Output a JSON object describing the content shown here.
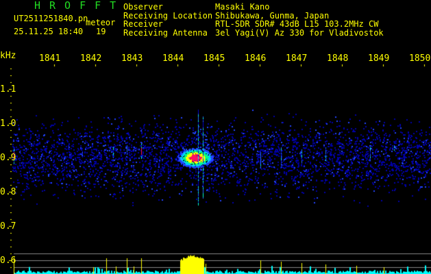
{
  "header": {
    "app_title": "HROFFT",
    "filename": "UT2511251840.pn",
    "mode": "meteor",
    "datetime": "25.11.25 18:40",
    "count": "19",
    "fields": [
      {
        "label": "Observer",
        "value": "Masaki Kano"
      },
      {
        "label": "Receiving Location",
        "value": "Shibukawa, Gunma, Japan"
      },
      {
        "label": "Receiver",
        "value": "RTL-SDR SDR# 43dB L15 103.2MHz CW"
      },
      {
        "label": "Receiving Antenna",
        "value": "3el Yagi(V) Az 330 for Vladivostok"
      }
    ]
  },
  "axis": {
    "unit": "kHz",
    "x_ticks": [
      "1841",
      "1842",
      "1843",
      "1844",
      "1845",
      "1846",
      "1847",
      "1848",
      "1849",
      "1850"
    ],
    "y_ticks": [
      "1.1",
      "1.0",
      "0.9",
      "0.8",
      "0.7",
      "0.6"
    ]
  },
  "colors": {
    "text": "#ffff00",
    "title": "#22dd22",
    "spectrum": "#00ffff",
    "peak": "#ffff00",
    "grid": "#888888"
  }
}
